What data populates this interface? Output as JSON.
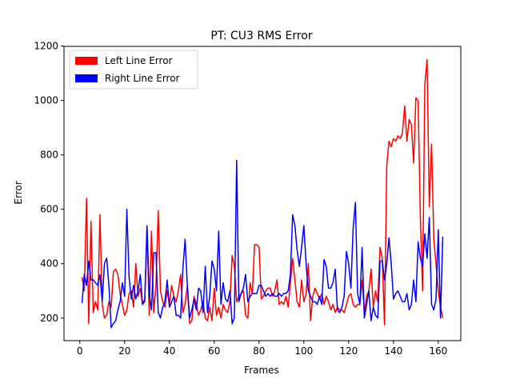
{
  "chart_data": {
    "type": "line",
    "title": "PT: CU3 RMS Error",
    "xlabel": "Frames",
    "ylabel": "Error",
    "legend": "upper left",
    "x": [
      1,
      2,
      3,
      4,
      5,
      6,
      7,
      8,
      9,
      10,
      11,
      12,
      13,
      14,
      15,
      16,
      17,
      18,
      19,
      20,
      21,
      22,
      23,
      24,
      25,
      26,
      27,
      28,
      29,
      30,
      31,
      32,
      33,
      34,
      35,
      36,
      37,
      38,
      39,
      40,
      41,
      42,
      43,
      44,
      45,
      46,
      47,
      48,
      49,
      50,
      51,
      52,
      53,
      54,
      55,
      56,
      57,
      58,
      59,
      60,
      61,
      62,
      63,
      64,
      65,
      66,
      67,
      68,
      69,
      70,
      71,
      72,
      73,
      74,
      75,
      76,
      77,
      78,
      79,
      80,
      81,
      82,
      83,
      84,
      85,
      86,
      87,
      88,
      89,
      90,
      91,
      92,
      93,
      94,
      95,
      96,
      97,
      98,
      99,
      100,
      101,
      102,
      103,
      104,
      105,
      106,
      107,
      108,
      109,
      110,
      111,
      112,
      113,
      114,
      115,
      116,
      117,
      118,
      119,
      120,
      121,
      122,
      123,
      124,
      125,
      126,
      127,
      128,
      129,
      130,
      131,
      132,
      133,
      134,
      135,
      136,
      137,
      138,
      139,
      140,
      141,
      142,
      143,
      144,
      145,
      146,
      147,
      148,
      149,
      150,
      151,
      152,
      153,
      154,
      155,
      156,
      157,
      158,
      159,
      160,
      161,
      162
    ],
    "series": [
      {
        "name": "Left Line Error",
        "color": "#ff0000",
        "values": [
          350,
          300,
          640,
          180,
          555,
          220,
          260,
          230,
          580,
          250,
          200,
          210,
          260,
          240,
          370,
          380,
          360,
          290,
          250,
          210,
          230,
          290,
          300,
          240,
          400,
          280,
          310,
          250,
          260,
          530,
          210,
          520,
          220,
          320,
          595,
          300,
          260,
          240,
          300,
          250,
          320,
          280,
          260,
          300,
          360,
          220,
          250,
          320,
          180,
          190,
          280,
          250,
          210,
          230,
          260,
          200,
          190,
          240,
          190,
          310,
          210,
          240,
          200,
          250,
          230,
          220,
          260,
          430,
          390,
          260,
          280,
          290,
          300,
          210,
          200,
          330,
          290,
          470,
          470,
          460,
          270,
          280,
          300,
          310,
          310,
          280,
          300,
          340,
          250,
          260,
          250,
          280,
          240,
          330,
          420,
          340,
          260,
          240,
          340,
          260,
          290,
          400,
          190,
          280,
          310,
          290,
          270,
          290,
          250,
          280,
          260,
          230,
          250,
          220,
          240,
          230,
          230,
          220,
          250,
          280,
          290,
          250,
          240,
          250,
          250,
          340,
          220,
          280,
          300,
          380,
          240,
          300,
          260,
          460,
          420,
          175,
          760,
          850,
          830,
          860,
          850,
          870,
          860,
          880,
          980,
          850,
          930,
          910,
          770,
          1010,
          1000,
          570,
          300,
          1060,
          1150,
          610,
          840,
          490,
          400,
          300,
          240,
          200
        ]
      },
      {
        "name": "Right Line Error",
        "color": "#0000ff",
        "values": [
          255,
          360,
          320,
          410,
          340,
          340,
          330,
          320,
          360,
          260,
          400,
          420,
          320,
          165,
          180,
          190,
          230,
          260,
          330,
          280,
          600,
          350,
          270,
          320,
          270,
          300,
          360,
          250,
          270,
          540,
          290,
          230,
          440,
          440,
          220,
          200,
          240,
          260,
          340,
          240,
          260,
          280,
          210,
          210,
          200,
          380,
          490,
          320,
          200,
          230,
          270,
          230,
          310,
          300,
          220,
          390,
          220,
          280,
          410,
          380,
          300,
          520,
          250,
          330,
          270,
          260,
          300,
          180,
          200,
          780,
          260,
          290,
          310,
          360,
          260,
          280,
          290,
          290,
          290,
          320,
          320,
          300,
          280,
          290,
          280,
          290,
          280,
          280,
          290,
          280,
          290,
          290,
          300,
          360,
          580,
          540,
          450,
          390,
          460,
          540,
          400,
          300,
          280,
          260,
          260,
          250,
          280,
          250,
          415,
          390,
          310,
          310,
          330,
          380,
          230,
          220,
          240,
          280,
          445,
          400,
          310,
          530,
          625,
          290,
          250,
          460,
          200,
          250,
          300,
          190,
          240,
          210,
          200,
          410,
          410,
          340,
          400,
          495,
          400,
          270,
          290,
          300,
          280,
          260,
          260,
          290,
          230,
          250,
          340,
          260,
          480,
          420,
          390,
          510,
          420,
          570,
          250,
          230,
          270,
          525,
          200,
          500
        ]
      }
    ],
    "xlim": [
      -7.05,
      170.05
    ],
    "ylim": [
      117,
      1199
    ],
    "xticks": [
      0,
      20,
      40,
      60,
      80,
      100,
      120,
      140,
      160
    ],
    "yticks": [
      200,
      400,
      600,
      800,
      1000,
      1200
    ]
  }
}
